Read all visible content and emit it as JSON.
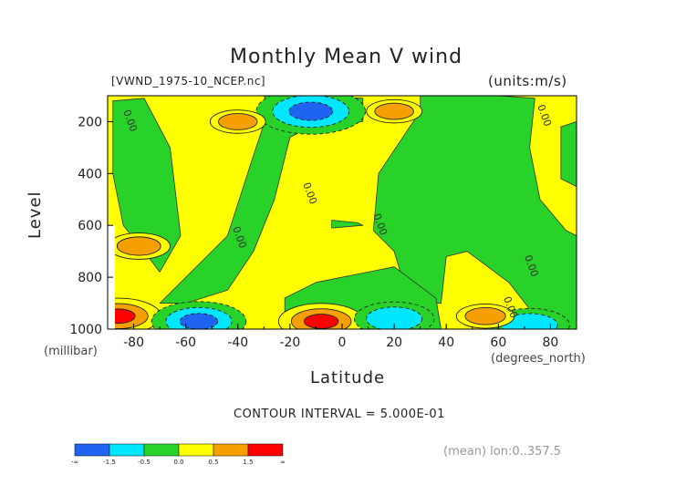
{
  "chart_data": {
    "type": "heatmap",
    "title": "Monthly Mean V wind",
    "dataset_label": "[VWND_1975-10_NCEP.nc]",
    "units_label": "(units:m/s)",
    "xlabel": "Latitude",
    "x_unit_label": "(degrees_north)",
    "ylabel": "Level",
    "y_unit_label": "(millibar)",
    "xlim": [
      -90,
      90
    ],
    "ylim": [
      1000,
      100
    ],
    "x_ticks": [
      "-80",
      "-60",
      "-40",
      "-20",
      "0",
      "20",
      "40",
      "60",
      "80"
    ],
    "x_tick_values": [
      -80,
      -60,
      -40,
      -20,
      0,
      20,
      40,
      60,
      80
    ],
    "y_ticks": [
      "200",
      "400",
      "600",
      "800",
      "1000"
    ],
    "y_tick_values": [
      200,
      400,
      600,
      800,
      1000
    ],
    "contour_interval_text": "CONTOUR INTERVAL = 5.000E-01",
    "footnote": "(mean) lon:0..357.5",
    "contour_label": "0.00",
    "colorbar": {
      "colors": [
        "#1e64f0",
        "#00e6ff",
        "#28d228",
        "#ffff00",
        "#f5a000",
        "#ff0000"
      ],
      "labels": [
        "-∞",
        "-1.5",
        "-0.5",
        "0.0",
        "0.5",
        "1.5",
        "∞"
      ]
    },
    "background_color": "#ffff00",
    "features": [
      {
        "sign": "positive",
        "lat": -86,
        "level": 950,
        "value": 2.0
      },
      {
        "sign": "positive",
        "lat": -8,
        "level": 970,
        "value": 2.0
      },
      {
        "sign": "negative",
        "lat": -12,
        "level": 160,
        "value": -2.0
      },
      {
        "sign": "negative",
        "lat": -55,
        "level": 970,
        "value": -1.5
      },
      {
        "sign": "negative",
        "lat": 20,
        "level": 960,
        "value": -1.0
      },
      {
        "sign": "negative",
        "lat": 72,
        "level": 985,
        "value": -1.0
      },
      {
        "sign": "positive",
        "lat": 20,
        "level": 160,
        "value": 0.7
      },
      {
        "sign": "positive",
        "lat": -40,
        "level": 200,
        "value": 0.7
      },
      {
        "sign": "positive",
        "lat": 55,
        "level": 950,
        "value": 0.8
      },
      {
        "sign": "positive",
        "lat": -78,
        "level": 680,
        "value": 1.0
      }
    ]
  }
}
